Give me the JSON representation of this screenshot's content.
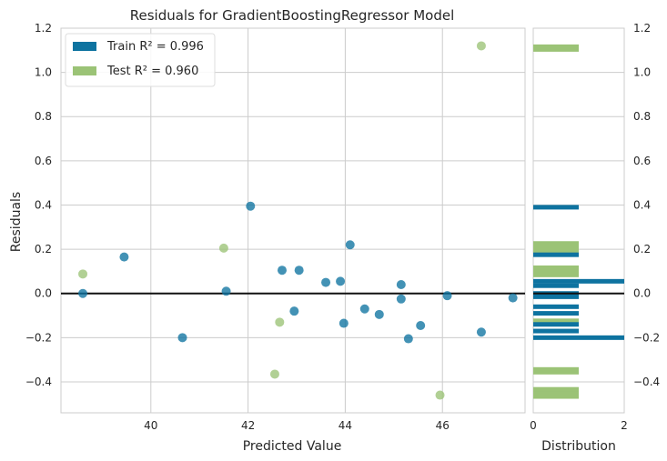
{
  "chart_data": {
    "type": "scatter",
    "title": "Residuals for GradientBoostingRegressor Model",
    "xlabel": "Predicted Value",
    "ylabel": "Residuals",
    "xlim": [
      38.15,
      47.7
    ],
    "ylim": [
      -0.54,
      1.2
    ],
    "x_ticks": [
      40,
      42,
      44,
      46
    ],
    "y_ticks": [
      -0.4,
      -0.2,
      0.0,
      0.2,
      0.4,
      0.6,
      0.8,
      1.0,
      1.2
    ],
    "x_tick_labels": [
      "40",
      "42",
      "44",
      "46"
    ],
    "y_tick_labels": [
      "−0.4",
      "−0.2",
      "0.0",
      "0.2",
      "0.4",
      "0.6",
      "0.8",
      "1.0",
      "1.2"
    ],
    "grid": true,
    "legend_position": "top-left",
    "zero_line": true,
    "series": [
      {
        "name": "Train",
        "r2_label": "Train R² = 0.996",
        "color": "#0e73a0",
        "points": [
          [
            38.6,
            0.0
          ],
          [
            39.45,
            0.165
          ],
          [
            40.65,
            -0.2
          ],
          [
            41.55,
            0.01
          ],
          [
            42.05,
            0.395
          ],
          [
            42.7,
            0.105
          ],
          [
            42.95,
            -0.08
          ],
          [
            43.05,
            0.105
          ],
          [
            43.6,
            0.05
          ],
          [
            43.9,
            0.055
          ],
          [
            43.97,
            -0.135
          ],
          [
            44.1,
            0.22
          ],
          [
            44.4,
            -0.07
          ],
          [
            44.7,
            -0.095
          ],
          [
            45.15,
            0.04
          ],
          [
            45.15,
            -0.025
          ],
          [
            45.3,
            -0.205
          ],
          [
            45.55,
            -0.145
          ],
          [
            46.1,
            -0.01
          ],
          [
            46.8,
            -0.175
          ],
          [
            47.45,
            -0.02
          ]
        ]
      },
      {
        "name": "Test",
        "r2_label": "Test R² = 0.960",
        "color": "#9bc376",
        "points": [
          [
            38.6,
            0.088
          ],
          [
            41.5,
            0.205
          ],
          [
            42.65,
            -0.13
          ],
          [
            42.55,
            -0.365
          ],
          [
            46.8,
            1.12
          ],
          [
            45.95,
            -0.46
          ]
        ]
      }
    ],
    "distribution": {
      "xlabel": "Distribution",
      "xlim": [
        0,
        2
      ],
      "x_ticks": [
        0,
        2
      ],
      "x_tick_labels": [
        "0",
        "2"
      ],
      "train_bins": [
        {
          "y": 0.39,
          "count": 1
        },
        {
          "y": 0.175,
          "count": 1
        },
        {
          "y": 0.055,
          "count": 2
        },
        {
          "y": 0.035,
          "count": 1
        },
        {
          "y": 0.0,
          "count": 1
        },
        {
          "y": -0.015,
          "count": 1
        },
        {
          "y": -0.06,
          "count": 1
        },
        {
          "y": -0.09,
          "count": 1
        },
        {
          "y": -0.14,
          "count": 1
        },
        {
          "y": -0.17,
          "count": 1
        },
        {
          "y": -0.2,
          "count": 2
        }
      ],
      "test_bins": [
        {
          "y": 1.11,
          "count": 1
        },
        {
          "y": 0.22,
          "count": 1
        },
        {
          "y": 0.2,
          "count": 1
        },
        {
          "y": 0.11,
          "count": 1
        },
        {
          "y": 0.09,
          "count": 1
        },
        {
          "y": -0.13,
          "count": 1
        },
        {
          "y": -0.35,
          "count": 1
        },
        {
          "y": -0.44,
          "count": 1
        },
        {
          "y": -0.46,
          "count": 1
        }
      ]
    }
  }
}
